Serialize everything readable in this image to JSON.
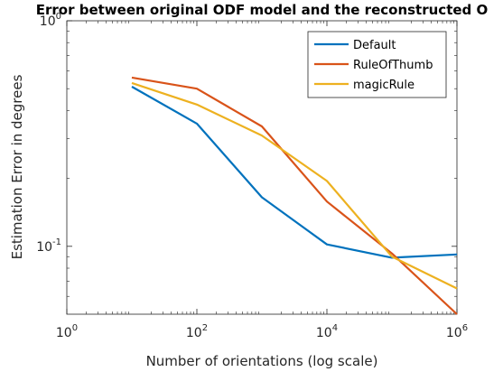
{
  "chart_data": {
    "type": "line",
    "title": "Error between original ODF model and the reconstructed O",
    "xlabel": "Number of orientations (log scale)",
    "ylabel": "Estimation Error in degrees",
    "xscale": "log",
    "yscale": "log",
    "xlim": [
      1,
      1000000
    ],
    "ylim": [
      0.05,
      1
    ],
    "x_ticks": [
      {
        "base": "10",
        "exp": "0",
        "value": 1
      },
      {
        "base": "10",
        "exp": "2",
        "value": 100
      },
      {
        "base": "10",
        "exp": "4",
        "value": 10000
      },
      {
        "base": "10",
        "exp": "6",
        "value": 1000000
      }
    ],
    "y_ticks": [
      {
        "base": "10",
        "exp": "-1",
        "value": 0.1
      },
      {
        "base": "10",
        "exp": "0",
        "value": 1
      }
    ],
    "x": [
      10,
      100,
      1000,
      10000,
      100000,
      1000000
    ],
    "series": [
      {
        "name": "Default",
        "color": "#0072BD",
        "values": [
          0.51,
          0.35,
          0.165,
          0.102,
          0.089,
          0.092
        ]
      },
      {
        "name": "RuleOfThumb",
        "color": "#D95319",
        "values": [
          0.56,
          0.5,
          0.34,
          0.158,
          0.093,
          0.05
        ]
      },
      {
        "name": "magicRule",
        "color": "#EDB120",
        "values": [
          0.53,
          0.425,
          0.31,
          0.195,
          0.09,
          0.065
        ]
      }
    ],
    "grid": false,
    "legend_position": "top-right"
  }
}
